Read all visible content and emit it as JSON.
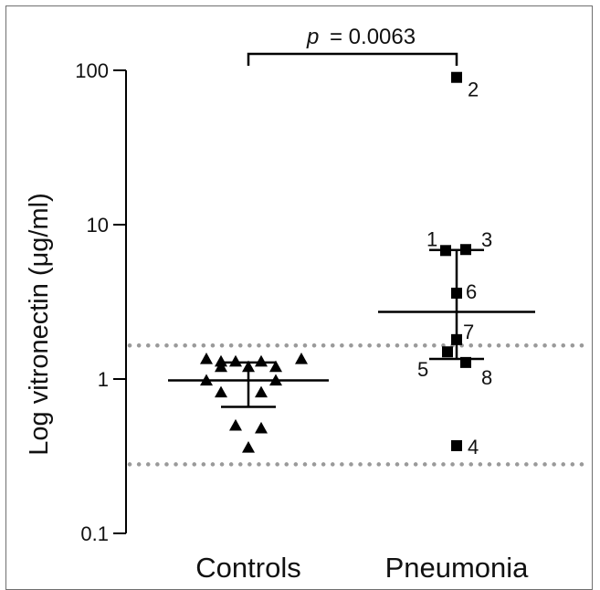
{
  "chart_data": {
    "type": "scatter",
    "ylabel": "Log vitronectin (μg/ml)",
    "yscale": "log",
    "ylim": [
      0.1,
      100
    ],
    "yticks": [
      {
        "value": 100,
        "label": "100"
      },
      {
        "value": 10,
        "label": "10"
      },
      {
        "value": 1,
        "label": "1"
      },
      {
        "value": 0.1,
        "label": "0.1"
      }
    ],
    "categories": [
      "Controls",
      "Pneumonia"
    ],
    "significance": {
      "p_label": "p",
      "p_value": "= 0.0063"
    },
    "reference_lines": [
      1.65,
      0.28
    ],
    "series": [
      {
        "category": "Controls",
        "marker": "triangle",
        "points": [
          {
            "y": 1.35
          },
          {
            "y": 1.3
          },
          {
            "y": 1.3
          },
          {
            "y": 1.3
          },
          {
            "y": 1.35
          },
          {
            "y": 1.2
          },
          {
            "y": 1.2
          },
          {
            "y": 1.2
          },
          {
            "y": 0.98
          },
          {
            "y": 0.98
          },
          {
            "y": 0.82
          },
          {
            "y": 0.82
          },
          {
            "y": 0.5
          },
          {
            "y": 0.48
          },
          {
            "y": 0.36
          }
        ],
        "summary": {
          "center": 0.98,
          "upper": 1.28,
          "lower": 0.66
        }
      },
      {
        "category": "Pneumonia",
        "marker": "square",
        "points": [
          {
            "y": 6.8,
            "label": "1"
          },
          {
            "y": 90,
            "label": "2"
          },
          {
            "y": 6.9,
            "label": "3"
          },
          {
            "y": 0.37,
            "label": "4"
          },
          {
            "y": 1.5,
            "label": "5"
          },
          {
            "y": 3.6,
            "label": "6"
          },
          {
            "y": 1.8,
            "label": "7"
          },
          {
            "y": 1.28,
            "label": "8"
          }
        ],
        "summary": {
          "center": 2.72,
          "upper": 6.85,
          "lower": 1.35
        }
      }
    ]
  }
}
